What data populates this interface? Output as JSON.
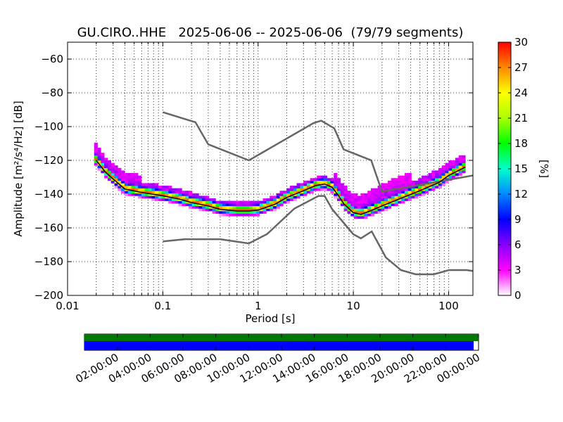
{
  "chart_data": {
    "type": "heatmap",
    "title": "GU.CIRO..HHE   2025-06-06 -- 2025-06-06  (79/79 segments)",
    "xlabel": "Period [s]",
    "ylabel": "Amplitude [m²/s⁴/Hz] [dB]",
    "xscale": "log",
    "xlim": [
      0.01,
      180
    ],
    "ylim": [
      -200,
      -50
    ],
    "x_ticks": [
      0.01,
      0.1,
      1,
      10,
      100
    ],
    "x_tick_labels": [
      "0.01",
      "0.1",
      "1",
      "10",
      "100"
    ],
    "y_ticks": [
      -200,
      -180,
      -160,
      -140,
      -120,
      -100,
      -80,
      -60
    ],
    "y_tick_labels": [
      "−200",
      "−180",
      "−160",
      "−140",
      "−120",
      "−100",
      "−80",
      "−60"
    ],
    "grid": true,
    "colorbar": {
      "label": "[%]",
      "range": [
        0,
        30
      ],
      "ticks": [
        "0",
        "3",
        "6",
        "9",
        "12",
        "15",
        "18",
        "21",
        "24",
        "27",
        "30"
      ],
      "colors": [
        "#ffffff",
        "#ff00ff",
        "#8800ff",
        "#0000ff",
        "#0088ff",
        "#00ffcc",
        "#00ff00",
        "#aaff00",
        "#ffff00",
        "#ff8800",
        "#ff0000"
      ]
    },
    "noise_models": {
      "high": {
        "x": [
          0.1,
          0.22,
          0.3,
          0.8,
          3.8,
          4.6,
          6.3,
          7.9,
          15.4,
          20,
          354.8
        ],
        "y": [
          -91.5,
          -97.4,
          -110.5,
          -120,
          -98,
          -96.5,
          -101,
          -113.5,
          -120,
          -138.5,
          -126
        ]
      },
      "low": {
        "x": [
          0.1,
          0.17,
          0.4,
          0.8,
          1.24,
          2.4,
          4.3,
          5,
          6,
          10,
          12,
          15.6,
          21.9,
          31.6,
          45,
          70,
          101,
          154,
          180
        ],
        "y": [
          -168,
          -166.7,
          -166.7,
          -169.2,
          -163.7,
          -148.6,
          -141.1,
          -141.1,
          -149,
          -163.8,
          -166.2,
          -162.1,
          -177.5,
          -185,
          -187.5,
          -187.5,
          -185,
          -185,
          -185.5
        ]
      }
    },
    "median_curve": {
      "x": [
        0.02,
        0.025,
        0.03,
        0.04,
        0.06,
        0.1,
        0.15,
        0.2,
        0.3,
        0.4,
        0.6,
        0.8,
        1,
        1.5,
        2,
        3,
        4,
        5,
        6,
        7,
        8,
        10,
        12,
        15,
        20,
        30,
        50,
        80,
        100,
        150
      ],
      "y": [
        -120,
        -127,
        -131,
        -137,
        -139,
        -141,
        -143,
        -145,
        -147,
        -149,
        -150,
        -150,
        -149.5,
        -146,
        -142,
        -138,
        -135,
        -134,
        -136,
        -141,
        -146,
        -151,
        -152,
        -150,
        -147,
        -143,
        -138,
        -133,
        -129,
        -124
      ]
    },
    "band_lower": {
      "x": [
        0.02,
        0.025,
        0.03,
        0.04,
        0.06,
        0.1,
        0.15,
        0.2,
        0.3,
        0.4,
        0.6,
        0.8,
        1,
        1.5,
        2,
        3,
        4,
        5,
        6,
        7,
        8,
        10,
        12,
        15,
        20,
        30,
        50,
        80,
        100,
        150
      ],
      "y": [
        -123,
        -129,
        -136,
        -140,
        -142,
        -144,
        -145,
        -147,
        -149,
        -151,
        -152,
        -152,
        -151,
        -148,
        -144,
        -140,
        -137,
        -136,
        -138,
        -143,
        -148,
        -153,
        -154,
        -152,
        -149,
        -145,
        -140,
        -135,
        -131,
        -126
      ]
    },
    "band_upper": {
      "x": [
        0.02,
        0.025,
        0.03,
        0.04,
        0.06,
        0.1,
        0.15,
        0.2,
        0.3,
        0.4,
        0.6,
        0.8,
        1,
        1.5,
        2,
        3,
        4,
        5,
        6,
        7,
        8,
        10,
        12,
        15,
        20,
        30,
        50,
        80,
        100,
        150
      ],
      "y": [
        -117,
        -125,
        -129,
        -134,
        -136,
        -138,
        -140,
        -142,
        -145,
        -147,
        -148,
        -148,
        -148,
        -144,
        -140,
        -136,
        -133,
        -132,
        -134,
        -139,
        -144,
        -149,
        -150,
        -147,
        -143,
        -139,
        -134,
        -128,
        -124,
        -119
      ]
    },
    "time_axis": {
      "labels": [
        "02:00:00",
        "04:00:00",
        "06:00:00",
        "08:00:00",
        "10:00:00",
        "12:00:00",
        "14:00:00",
        "16:00:00",
        "18:00:00",
        "20:00:00",
        "22:00:00",
        "00:00:00"
      ],
      "hours": [
        2,
        4,
        6,
        8,
        10,
        12,
        14,
        16,
        18,
        20,
        22,
        24
      ],
      "data_coverage": [
        0,
        24
      ],
      "psd_coverage": [
        0,
        23.7
      ],
      "coverage_colors": {
        "data": "#007700",
        "psd": "#0000ff"
      }
    }
  }
}
